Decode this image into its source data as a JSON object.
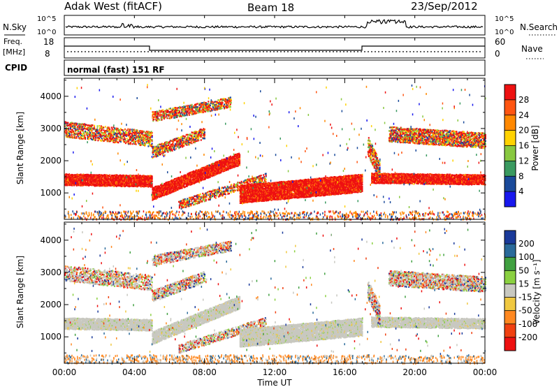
{
  "header": {
    "station": "Adak West (fitACF)",
    "beam": "Beam 18",
    "date": "23/Sep/2012"
  },
  "noise_panel": {
    "left_label": "N.Sky",
    "right_label": "N.Search",
    "left_ticks": [
      "10^5",
      "10^0"
    ],
    "right_ticks": [
      "10^5",
      "10^0"
    ]
  },
  "freq_panel": {
    "left_label_1": "Freq.",
    "left_label_2": "[MHz]",
    "right_label": "Nave",
    "left_ticks": [
      "18",
      "8"
    ],
    "right_ticks": [
      "60",
      "0"
    ]
  },
  "cpid": {
    "label": "CPID",
    "text": "normal (fast) 151 RF"
  },
  "chart_data": [
    {
      "type": "heatmap",
      "name": "power",
      "ylabel": "Slant Range [km]",
      "y_ticks": [
        1000,
        2000,
        3000,
        4000
      ],
      "ylim": [
        180,
        4560
      ],
      "colorbar_label": "Power [dB]",
      "colorbar_ticks": [
        28,
        24,
        20,
        16,
        12,
        8,
        4
      ],
      "colorbar_colors": [
        "#ee1111",
        "#ff5511",
        "#ff8800",
        "#ffd200",
        "#88c840",
        "#3a9a60",
        "#1a4a9a",
        "#1818ee"
      ]
    },
    {
      "type": "heatmap",
      "name": "velocity",
      "ylabel": "Slant Range [km]",
      "y_ticks": [
        1000,
        2000,
        3000,
        4000
      ],
      "ylim": [
        180,
        4560
      ],
      "colorbar_label": "Velocity [m s⁻¹]",
      "colorbar_ticks": [
        "200",
        "100",
        "50",
        "15",
        "-15",
        "-50",
        "-100",
        "-200"
      ],
      "colorbar_colors": [
        "#1a3a9a",
        "#2a6a9a",
        "#40a040",
        "#8ad040",
        "#c8c8c0",
        "#f0c840",
        "#ff8820",
        "#f04010",
        "#ee1010"
      ]
    }
  ],
  "x_axis": {
    "label": "Time UT",
    "ticks": [
      "00:00",
      "04:00",
      "08:00",
      "12:00",
      "16:00",
      "20:00",
      "00:00"
    ]
  }
}
